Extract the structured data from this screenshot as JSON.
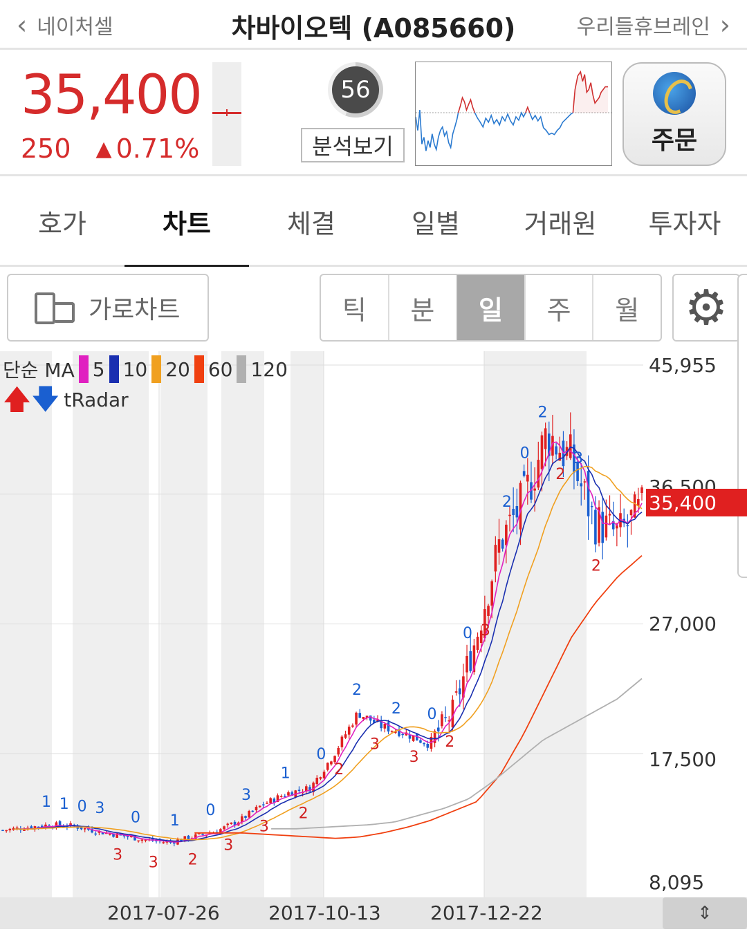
{
  "header": {
    "prev_label": "네이처셀",
    "title": "차바이오텍 (A085660)",
    "next_label": "우리들휴브레인"
  },
  "quote": {
    "price": "35,400",
    "change": "250",
    "change_pct": "0.71%",
    "analysis_score": "56",
    "analysis_button": "분석보기",
    "order_button": "주문",
    "price_color": "#d52b2b"
  },
  "tabs": [
    {
      "label": "호가"
    },
    {
      "label": "차트"
    },
    {
      "label": "체결"
    },
    {
      "label": "일별"
    },
    {
      "label": "거래원"
    },
    {
      "label": "투자자"
    }
  ],
  "toolbar": {
    "landscape_label": "가로차트",
    "periods": [
      "틱",
      "분",
      "일",
      "주",
      "월"
    ],
    "active_period": "일"
  },
  "legend": {
    "ma_label": "단순 MA",
    "ma_periods": [
      {
        "value": "5",
        "color": "#e020c0"
      },
      {
        "value": "10",
        "color": "#1a2fb0"
      },
      {
        "value": "20",
        "color": "#f0a020"
      },
      {
        "value": "60",
        "color": "#f04010"
      },
      {
        "value": "120",
        "color": "#b0b0b0"
      }
    ],
    "tradar_label": "tRadar"
  },
  "chart_data": {
    "type": "candlestick",
    "y_ticks": [
      "45,955",
      "36,500",
      "27,000",
      "17,500",
      "8,095"
    ],
    "ylim": [
      8095,
      45955
    ],
    "current_price_label": "35,400",
    "x_ticks": [
      "2017-07-26",
      "2017-10-13",
      "2017-12-22"
    ],
    "series_close_approx": [
      11900,
      12100,
      12300,
      12200,
      11800,
      11500,
      11200,
      11000,
      11400,
      11800,
      12600,
      13800,
      14600,
      15000,
      17500,
      20500,
      19500,
      19000,
      18200,
      20500,
      26000,
      33000,
      36000,
      41000,
      39000,
      34500,
      33500,
      35400
    ],
    "ma60_approx": [
      11700,
      11700,
      11700,
      11600,
      11500,
      11400,
      11300,
      11400,
      11700,
      12100,
      12600,
      13300,
      14000,
      16000,
      19000,
      22500,
      26000,
      28500,
      30500,
      32000
    ],
    "ma120_approx": [
      12000,
      12000,
      12100,
      12200,
      12300,
      12500,
      13000,
      13500,
      14200,
      15500,
      17000,
      18500,
      19500,
      20500,
      21500,
      23000
    ],
    "annotations": [
      "1",
      "1",
      "0",
      "3",
      "3",
      "0",
      "3",
      "1",
      "2",
      "0",
      "3",
      "3",
      "3",
      "1",
      "2",
      "0",
      "2",
      "2",
      "3",
      "2",
      "3",
      "0",
      "2",
      "0",
      "3",
      "2",
      "0",
      "2",
      "2",
      "3",
      "2"
    ]
  }
}
